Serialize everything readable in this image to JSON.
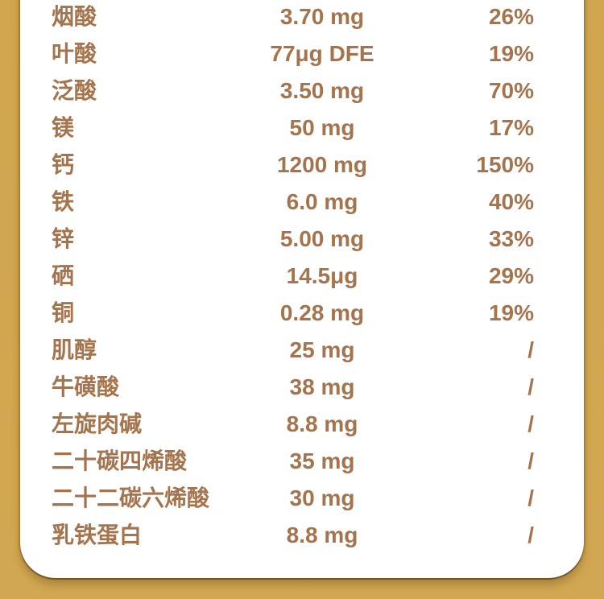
{
  "colors": {
    "background_gold": "#d2a751",
    "panel_white": "#ffffff",
    "text_brown": "#a5744c"
  },
  "table": {
    "rows": [
      {
        "name": "烟酸",
        "amount": "3.70 mg",
        "nrv": "26%"
      },
      {
        "name": "叶酸",
        "amount": "77μg DFE",
        "nrv": "19%"
      },
      {
        "name": "泛酸",
        "amount": "3.50 mg",
        "nrv": "70%"
      },
      {
        "name": "镁",
        "amount": "50 mg",
        "nrv": "17%"
      },
      {
        "name": "钙",
        "amount": "1200 mg",
        "nrv": "150%"
      },
      {
        "name": "铁",
        "amount": "6.0 mg",
        "nrv": "40%"
      },
      {
        "name": "锌",
        "amount": "5.00 mg",
        "nrv": "33%"
      },
      {
        "name": "硒",
        "amount": "14.5μg",
        "nrv": "29%"
      },
      {
        "name": "铜",
        "amount": "0.28 mg",
        "nrv": "19%"
      },
      {
        "name": "肌醇",
        "amount": "25 mg",
        "nrv": "/"
      },
      {
        "name": "牛磺酸",
        "amount": "38 mg",
        "nrv": "/"
      },
      {
        "name": "左旋肉碱",
        "amount": "8.8 mg",
        "nrv": "/"
      },
      {
        "name": "二十碳四烯酸",
        "amount": "35 mg",
        "nrv": "/"
      },
      {
        "name": "二十二碳六烯酸",
        "amount": "30 mg",
        "nrv": "/"
      },
      {
        "name": "乳铁蛋白",
        "amount": "8.8 mg",
        "nrv": "/"
      }
    ]
  }
}
